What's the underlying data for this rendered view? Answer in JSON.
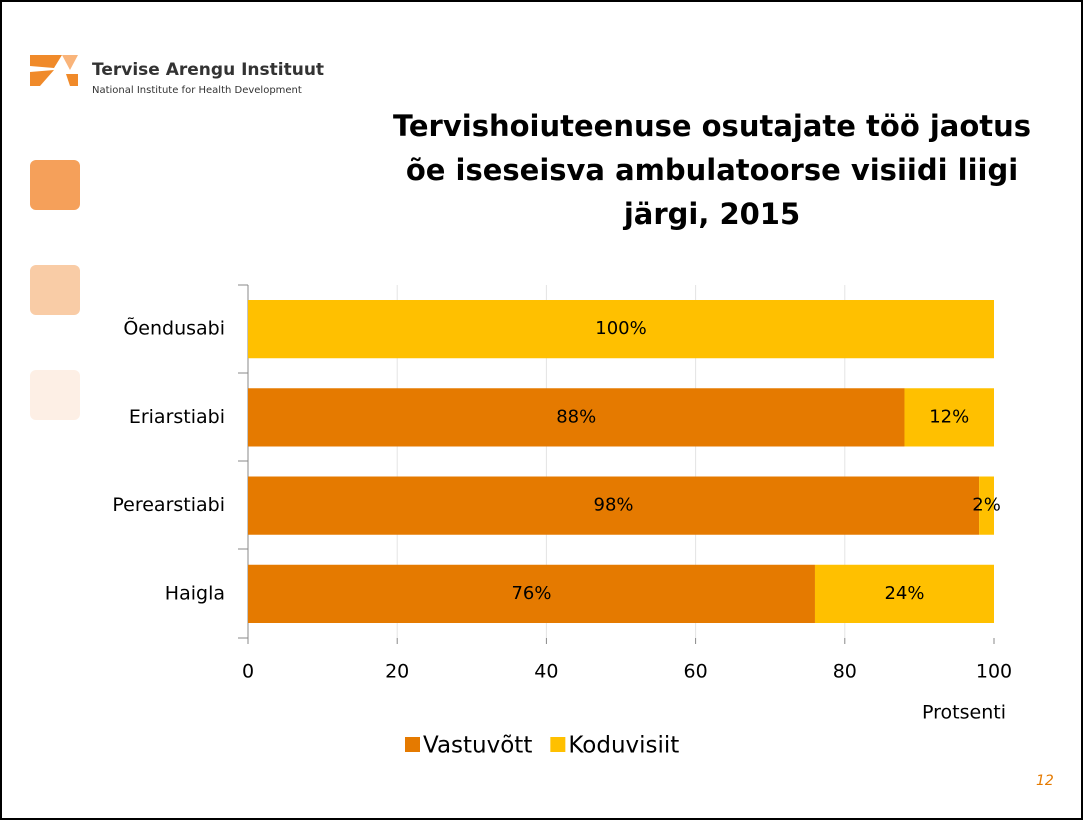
{
  "logo": {
    "name": "Tervise Arengu Instituut",
    "subtitle": "National Institute for Health Development"
  },
  "page_number": "12",
  "chart_data": {
    "type": "stacked_barh",
    "title": "Tervishoiuteenuse osutajate töö jaotus õe iseseisva ambulatoorse visiidi liigi järgi, 2015",
    "x_label": "Protsenti",
    "categories": [
      "Õendusabi",
      "Eriarstiabi",
      "Perearstiabi",
      "Haigla"
    ],
    "series": [
      {
        "name": "Vastuvõtt",
        "color": "#e57a00",
        "values": [
          0,
          88,
          98,
          76
        ],
        "value_labels": [
          null,
          "88%",
          "98%",
          "76%"
        ]
      },
      {
        "name": "Koduvisiit",
        "color": "#ffc000",
        "values": [
          100,
          12,
          2,
          24
        ],
        "value_labels": [
          "100%",
          "12%",
          "2%",
          "24%"
        ]
      }
    ],
    "xlim": [
      0,
      100
    ],
    "xticks": [
      0,
      20,
      40,
      60,
      80,
      100
    ],
    "grid": true,
    "legend": "bottom"
  }
}
